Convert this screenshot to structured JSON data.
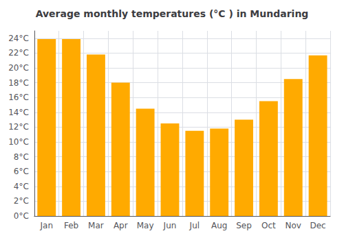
{
  "chart_data": {
    "type": "bar",
    "title": "Average monthly temperatures (°C ) in Mundaring",
    "categories": [
      "Jan",
      "Feb",
      "Mar",
      "Apr",
      "May",
      "Jun",
      "Jul",
      "Aug",
      "Sep",
      "Oct",
      "Nov",
      "Dec"
    ],
    "values": [
      23.9,
      23.9,
      21.8,
      18.0,
      14.5,
      12.5,
      11.5,
      11.8,
      13.0,
      15.5,
      18.5,
      21.7
    ],
    "color": "#FFAA00",
    "ylim": [
      0,
      25
    ],
    "yticks": [
      {
        "value": 0,
        "label": "0°C"
      },
      {
        "value": 2,
        "label": "2°C"
      },
      {
        "value": 4,
        "label": "4°C"
      },
      {
        "value": 6,
        "label": "6°C"
      },
      {
        "value": 8,
        "label": "8°C"
      },
      {
        "value": 10,
        "label": "10°C"
      },
      {
        "value": 12,
        "label": "12°C"
      },
      {
        "value": 14,
        "label": "14°C"
      },
      {
        "value": 16,
        "label": "16°C"
      },
      {
        "value": 18,
        "label": "18°C"
      },
      {
        "value": 20,
        "label": "20°C"
      },
      {
        "value": 22,
        "label": "22°C"
      },
      {
        "value": 24,
        "label": "24°C"
      }
    ],
    "grid": true
  }
}
